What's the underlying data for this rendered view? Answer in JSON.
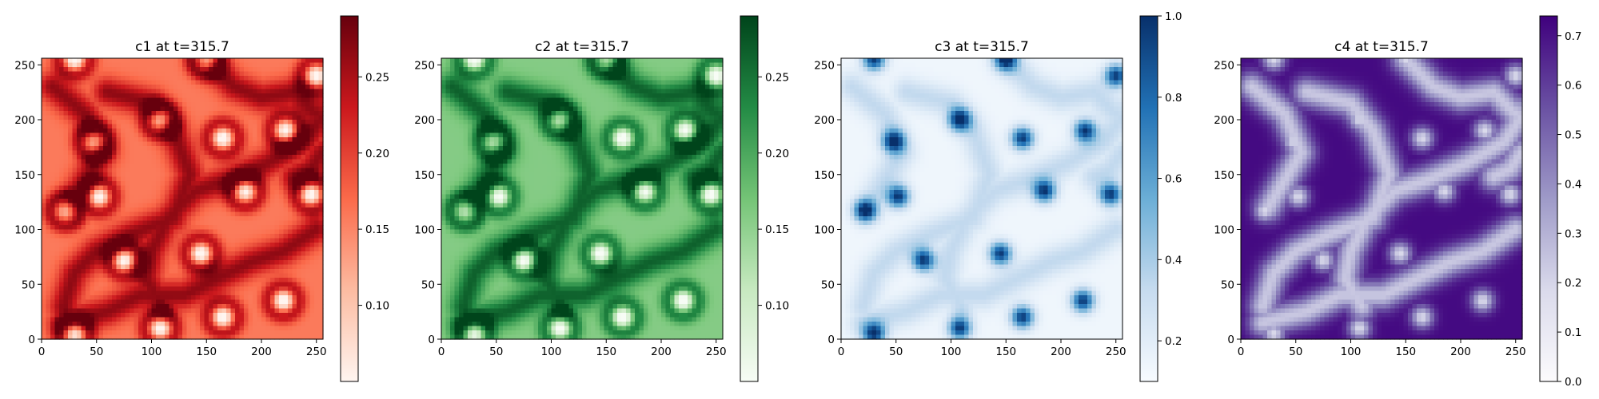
{
  "figure": {
    "layout": "1x4 heatmap panels, each with a vertical colorbar on the right"
  },
  "chart_data": [
    {
      "type": "heatmap",
      "title": "c1 at t=315.7",
      "colormap": "Reds",
      "colormap_colors": [
        "#fff5f0",
        "#fcbba1",
        "#fb6a4a",
        "#cb181d",
        "#67000d"
      ],
      "xlim": [
        0,
        256
      ],
      "ylim": [
        0,
        256
      ],
      "xticks": [
        0,
        50,
        100,
        150,
        200,
        250
      ],
      "yticks": [
        0,
        50,
        100,
        150,
        200,
        250
      ],
      "colorbar": {
        "range": [
          0.05,
          0.29
        ],
        "ticks": [
          0.1,
          0.15,
          0.2,
          0.25
        ],
        "tick_labels": [
          "0.10",
          "0.15",
          "0.20",
          "0.25"
        ]
      },
      "pattern": "spots_low"
    },
    {
      "type": "heatmap",
      "title": "c2 at t=315.7",
      "colormap": "Greens",
      "colormap_colors": [
        "#f7fcf5",
        "#c7e9c0",
        "#74c476",
        "#238b45",
        "#00441b"
      ],
      "xlim": [
        0,
        256
      ],
      "ylim": [
        0,
        256
      ],
      "xticks": [
        0,
        50,
        100,
        150,
        200,
        250
      ],
      "yticks": [
        0,
        50,
        100,
        150,
        200,
        250
      ],
      "colorbar": {
        "range": [
          0.05,
          0.29
        ],
        "ticks": [
          0.1,
          0.15,
          0.2,
          0.25
        ],
        "tick_labels": [
          "0.10",
          "0.15",
          "0.20",
          "0.25"
        ]
      },
      "pattern": "spots_low"
    },
    {
      "type": "heatmap",
      "title": "c3 at t=315.7",
      "colormap": "Blues",
      "colormap_colors": [
        "#f7fbff",
        "#c6dbef",
        "#6baed6",
        "#2171b5",
        "#08306b"
      ],
      "xlim": [
        0,
        256
      ],
      "ylim": [
        0,
        256
      ],
      "xticks": [
        0,
        50,
        100,
        150,
        200,
        250
      ],
      "yticks": [
        0,
        50,
        100,
        150,
        200,
        250
      ],
      "colorbar": {
        "range": [
          0.1,
          1.0
        ],
        "ticks": [
          0.2,
          0.4,
          0.6,
          0.8,
          1.0
        ],
        "tick_labels": [
          "0.2",
          "0.4",
          "0.6",
          "0.8",
          "1.0"
        ]
      },
      "pattern": "spots_high"
    },
    {
      "type": "heatmap",
      "title": "c4 at t=315.7",
      "colormap": "Purples",
      "colormap_colors": [
        "#fcfbfd",
        "#dadaeb",
        "#9e9ac8",
        "#6a51a3",
        "#3f007d"
      ],
      "xlim": [
        0,
        256
      ],
      "ylim": [
        0,
        256
      ],
      "xticks": [
        0,
        50,
        100,
        150,
        200,
        250
      ],
      "yticks": [
        0,
        50,
        100,
        150,
        200,
        250
      ],
      "colorbar": {
        "range": [
          0.0,
          0.74
        ],
        "ticks": [
          0.0,
          0.1,
          0.2,
          0.3,
          0.4,
          0.5,
          0.6,
          0.7
        ],
        "tick_labels": [
          "0.0",
          "0.1",
          "0.2",
          "0.3",
          "0.4",
          "0.5",
          "0.6",
          "0.7"
        ]
      },
      "pattern": "spots_inverse"
    }
  ]
}
